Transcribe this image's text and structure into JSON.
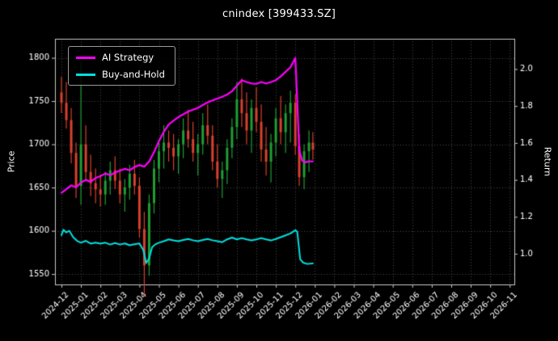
{
  "window": {
    "title": "cnindex [399433.SZ]"
  },
  "chart_data": {
    "type": "line",
    "title": "cnindex [399433.SZ]",
    "xlabel": "",
    "grid": true,
    "background": "#000000",
    "left_axis": {
      "label": "Price",
      "ticks": [
        1550,
        1600,
        1650,
        1700,
        1750,
        1800
      ],
      "range": [
        1538,
        1822
      ]
    },
    "right_axis": {
      "label": "Return",
      "ticks": [
        1.0,
        1.2,
        1.4,
        1.6,
        1.8,
        2.0
      ],
      "range": [
        0.834,
        2.164
      ]
    },
    "x_tick_labels": [
      "2024-12",
      "2025-01",
      "2025-02",
      "2025-03",
      "2025-04",
      "2025-05",
      "2025-06",
      "2025-07",
      "2025-08",
      "2025-09",
      "2025-10",
      "2025-11",
      "2025-12",
      "2026-01",
      "2026-02",
      "2026-03",
      "2026-04",
      "2026-05",
      "2026-06",
      "2026-07",
      "2026-08",
      "2026-09",
      "2026-10",
      "2026-11"
    ],
    "legend": {
      "position": "upper-left",
      "entries": [
        {
          "label": "AI Strategy",
          "color": "#ff00ff"
        },
        {
          "label": "Buy-and-Hold",
          "color": "#00e0e0"
        }
      ]
    },
    "price_ohlc": {
      "name": "cnindex price",
      "axis": "left",
      "color_up": "#1f9e33",
      "color_down": "#d9402e",
      "points": [
        [
          0.0,
          1760,
          1778,
          1736,
          1748
        ],
        [
          0.25,
          1748,
          1772,
          1718,
          1728
        ],
        [
          0.5,
          1728,
          1742,
          1678,
          1690
        ],
        [
          0.75,
          1690,
          1702,
          1638,
          1652
        ],
        [
          1.0,
          1652,
          1795,
          1630,
          1700
        ],
        [
          1.25,
          1700,
          1722,
          1658,
          1668
        ],
        [
          1.5,
          1668,
          1688,
          1640,
          1655
        ],
        [
          1.75,
          1655,
          1672,
          1632,
          1648
        ],
        [
          2.0,
          1648,
          1665,
          1628,
          1642
        ],
        [
          2.25,
          1642,
          1668,
          1630,
          1658
        ],
        [
          2.5,
          1658,
          1680,
          1642,
          1670
        ],
        [
          2.75,
          1670,
          1686,
          1648,
          1658
        ],
        [
          3.0,
          1658,
          1672,
          1632,
          1642
        ],
        [
          3.25,
          1642,
          1660,
          1622,
          1650
        ],
        [
          3.5,
          1650,
          1676,
          1636,
          1666
        ],
        [
          3.75,
          1666,
          1682,
          1642,
          1652
        ],
        [
          4.0,
          1652,
          1662,
          1592,
          1602
        ],
        [
          4.25,
          1602,
          1622,
          1524,
          1560
        ],
        [
          4.5,
          1560,
          1642,
          1548,
          1632
        ],
        [
          4.75,
          1632,
          1682,
          1620,
          1672
        ],
        [
          5.0,
          1672,
          1702,
          1656,
          1692
        ],
        [
          5.25,
          1692,
          1722,
          1672,
          1702
        ],
        [
          5.5,
          1702,
          1716,
          1680,
          1696
        ],
        [
          5.75,
          1696,
          1712,
          1670,
          1686
        ],
        [
          6.0,
          1686,
          1706,
          1666,
          1700
        ],
        [
          6.25,
          1700,
          1730,
          1684,
          1716
        ],
        [
          6.5,
          1716,
          1740,
          1696,
          1706
        ],
        [
          6.75,
          1706,
          1726,
          1680,
          1690
        ],
        [
          7.0,
          1690,
          1712,
          1664,
          1700
        ],
        [
          7.25,
          1700,
          1736,
          1688,
          1722
        ],
        [
          7.5,
          1722,
          1746,
          1700,
          1710
        ],
        [
          7.75,
          1710,
          1722,
          1670,
          1680
        ],
        [
          8.0,
          1680,
          1700,
          1650,
          1660
        ],
        [
          8.25,
          1660,
          1680,
          1638,
          1670
        ],
        [
          8.5,
          1670,
          1706,
          1654,
          1696
        ],
        [
          8.75,
          1696,
          1730,
          1684,
          1720
        ],
        [
          9.0,
          1720,
          1772,
          1706,
          1752
        ],
        [
          9.25,
          1752,
          1776,
          1720,
          1736
        ],
        [
          9.5,
          1736,
          1760,
          1700,
          1716
        ],
        [
          9.75,
          1716,
          1752,
          1690,
          1742
        ],
        [
          10.0,
          1742,
          1766,
          1714,
          1726
        ],
        [
          10.25,
          1726,
          1746,
          1680,
          1694
        ],
        [
          10.5,
          1694,
          1720,
          1664,
          1680
        ],
        [
          10.75,
          1680,
          1712,
          1656,
          1702
        ],
        [
          11.0,
          1702,
          1742,
          1686,
          1730
        ],
        [
          11.25,
          1730,
          1756,
          1700,
          1714
        ],
        [
          11.5,
          1714,
          1746,
          1690,
          1736
        ],
        [
          11.75,
          1736,
          1762,
          1702,
          1748
        ],
        [
          12.0,
          1748,
          1758,
          1688,
          1698
        ],
        [
          12.2,
          1698,
          1712,
          1652,
          1662
        ],
        [
          12.45,
          1662,
          1700,
          1648,
          1692
        ],
        [
          12.7,
          1692,
          1716,
          1668,
          1702
        ],
        [
          12.9,
          1702,
          1714,
          1682,
          1694
        ]
      ]
    },
    "series": [
      {
        "name": "AI Strategy",
        "axis": "right",
        "color": "#ff00ff",
        "line_width": 2.2,
        "points": [
          [
            0,
            1.33
          ],
          [
            0.25,
            1.35
          ],
          [
            0.5,
            1.37
          ],
          [
            0.75,
            1.36
          ],
          [
            1,
            1.385
          ],
          [
            1.25,
            1.4
          ],
          [
            1.5,
            1.39
          ],
          [
            1.75,
            1.41
          ],
          [
            2,
            1.42
          ],
          [
            2.25,
            1.435
          ],
          [
            2.5,
            1.425
          ],
          [
            2.75,
            1.44
          ],
          [
            3,
            1.45
          ],
          [
            3.25,
            1.46
          ],
          [
            3.5,
            1.452
          ],
          [
            3.75,
            1.47
          ],
          [
            4,
            1.48
          ],
          [
            4.25,
            1.472
          ],
          [
            4.5,
            1.5
          ],
          [
            4.75,
            1.55
          ],
          [
            5,
            1.61
          ],
          [
            5.25,
            1.66
          ],
          [
            5.5,
            1.7
          ],
          [
            5.75,
            1.72
          ],
          [
            6,
            1.74
          ],
          [
            6.25,
            1.755
          ],
          [
            6.5,
            1.77
          ],
          [
            6.75,
            1.78
          ],
          [
            7,
            1.79
          ],
          [
            7.25,
            1.805
          ],
          [
            7.5,
            1.82
          ],
          [
            7.75,
            1.83
          ],
          [
            8,
            1.84
          ],
          [
            8.25,
            1.85
          ],
          [
            8.5,
            1.862
          ],
          [
            8.75,
            1.88
          ],
          [
            9,
            1.91
          ],
          [
            9.25,
            1.94
          ],
          [
            9.5,
            1.93
          ],
          [
            9.75,
            1.922
          ],
          [
            10,
            1.92
          ],
          [
            10.25,
            1.93
          ],
          [
            10.5,
            1.922
          ],
          [
            10.75,
            1.93
          ],
          [
            11,
            1.94
          ],
          [
            11.25,
            1.96
          ],
          [
            11.5,
            1.985
          ],
          [
            11.75,
            2.01
          ],
          [
            12,
            2.06
          ],
          [
            12.1,
            1.82
          ],
          [
            12.2,
            1.56
          ],
          [
            12.35,
            1.505
          ],
          [
            12.5,
            1.495
          ],
          [
            12.7,
            1.5
          ],
          [
            12.9,
            1.5
          ]
        ]
      },
      {
        "name": "Buy-and-Hold",
        "axis": "right",
        "color": "#00e0e0",
        "line_width": 2,
        "points": [
          [
            0,
            1.1
          ],
          [
            0.1,
            1.13
          ],
          [
            0.25,
            1.115
          ],
          [
            0.4,
            1.125
          ],
          [
            0.6,
            1.09
          ],
          [
            0.8,
            1.07
          ],
          [
            1,
            1.06
          ],
          [
            1.25,
            1.07
          ],
          [
            1.5,
            1.055
          ],
          [
            1.75,
            1.06
          ],
          [
            2,
            1.055
          ],
          [
            2.25,
            1.06
          ],
          [
            2.5,
            1.05
          ],
          [
            2.75,
            1.058
          ],
          [
            3,
            1.05
          ],
          [
            3.25,
            1.056
          ],
          [
            3.5,
            1.046
          ],
          [
            3.75,
            1.052
          ],
          [
            4,
            1.056
          ],
          [
            4.2,
            1.02
          ],
          [
            4.35,
            0.95
          ],
          [
            4.5,
            0.975
          ],
          [
            4.65,
            1.035
          ],
          [
            4.8,
            1.05
          ],
          [
            5,
            1.06
          ],
          [
            5.25,
            1.068
          ],
          [
            5.5,
            1.078
          ],
          [
            5.75,
            1.072
          ],
          [
            6,
            1.068
          ],
          [
            6.25,
            1.075
          ],
          [
            6.5,
            1.08
          ],
          [
            6.75,
            1.073
          ],
          [
            7,
            1.068
          ],
          [
            7.25,
            1.075
          ],
          [
            7.5,
            1.08
          ],
          [
            7.75,
            1.073
          ],
          [
            8,
            1.068
          ],
          [
            8.25,
            1.063
          ],
          [
            8.5,
            1.078
          ],
          [
            8.75,
            1.088
          ],
          [
            9,
            1.078
          ],
          [
            9.25,
            1.085
          ],
          [
            9.5,
            1.078
          ],
          [
            9.75,
            1.072
          ],
          [
            10,
            1.078
          ],
          [
            10.25,
            1.085
          ],
          [
            10.5,
            1.078
          ],
          [
            10.75,
            1.072
          ],
          [
            11,
            1.08
          ],
          [
            11.25,
            1.09
          ],
          [
            11.5,
            1.1
          ],
          [
            11.75,
            1.11
          ],
          [
            12,
            1.128
          ],
          [
            12.1,
            1.118
          ],
          [
            12.25,
            0.97
          ],
          [
            12.4,
            0.952
          ],
          [
            12.6,
            0.945
          ],
          [
            12.9,
            0.948
          ]
        ]
      }
    ]
  }
}
